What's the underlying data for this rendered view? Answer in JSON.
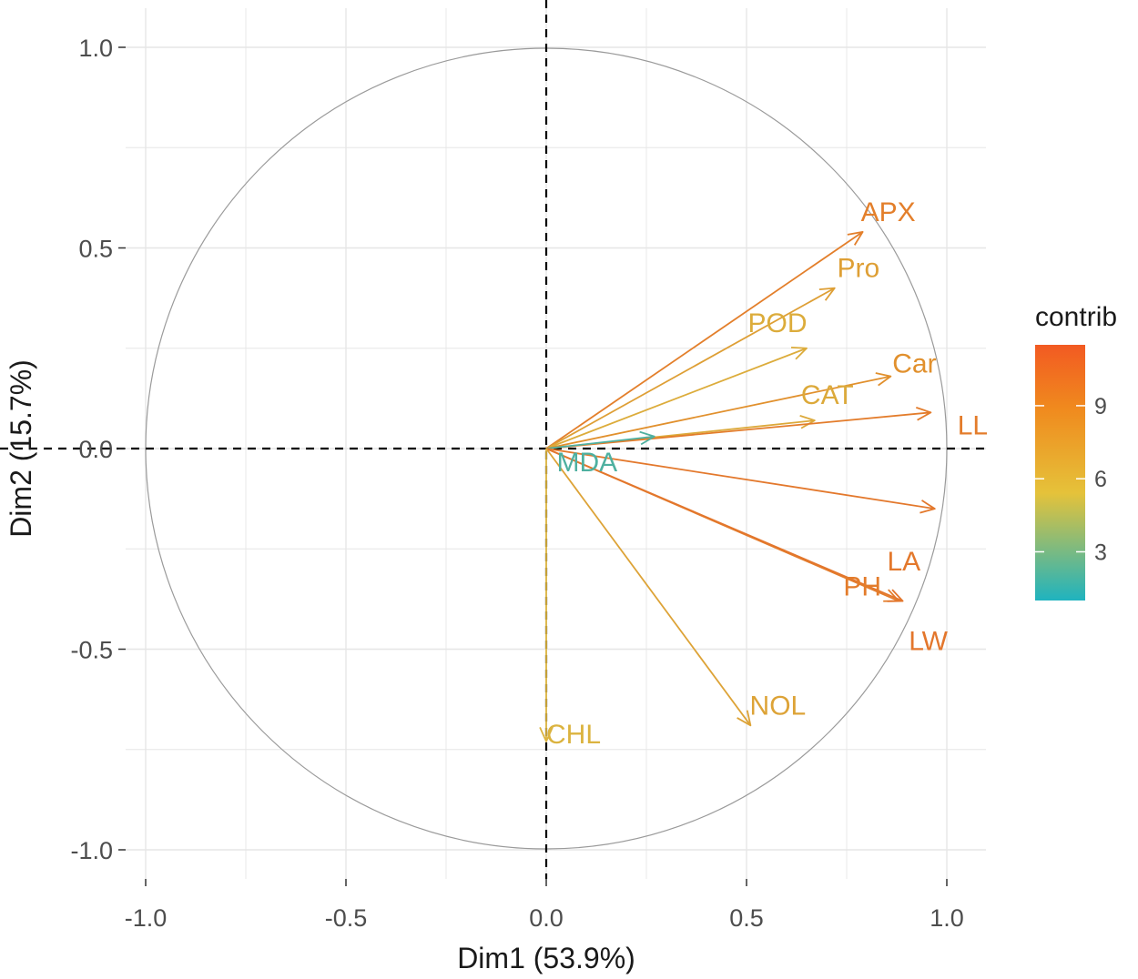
{
  "chart_data": {
    "type": "pca-variable-correlation-circle",
    "xlabel": "Dim1 (53.9%)",
    "ylabel": "Dim2 (15.7%)",
    "xlim": [
      -1.0,
      1.0
    ],
    "ylim": [
      -1.0,
      1.0
    ],
    "x_ticks": [
      -1.0,
      -0.5,
      0.0,
      0.5,
      1.0
    ],
    "y_ticks": [
      -1.0,
      -0.5,
      0.0,
      0.5,
      1.0
    ],
    "x_tick_labels": [
      "-1.0",
      "-0.5",
      "0.0",
      "0.5",
      "1.0"
    ],
    "y_tick_labels": [
      "-1.0",
      "-0.5",
      "0.0",
      "0.5",
      "1.0"
    ],
    "grid": true,
    "unit_circle": true,
    "legend": {
      "title": "contrib",
      "placement": "right",
      "range": [
        1,
        11.5
      ],
      "ticks": [
        3,
        6,
        9
      ],
      "tick_labels": [
        "3",
        "6",
        "9"
      ],
      "colors": [
        "#1fb3bf",
        "#e5c23a",
        "#f08a1e",
        "#f25a22"
      ]
    },
    "variables": [
      {
        "name": "APX",
        "label": "APX",
        "x": 0.79,
        "y": 0.54,
        "contrib": 9.5
      },
      {
        "name": "Pro",
        "label": "Pro",
        "x": 0.72,
        "y": 0.4,
        "contrib": 7.3
      },
      {
        "name": "POD",
        "label": "POD",
        "x": 0.65,
        "y": 0.25,
        "contrib": 6.4
      },
      {
        "name": "Car",
        "label": "Car",
        "x": 0.86,
        "y": 0.18,
        "contrib": 8.4
      },
      {
        "name": "CAT",
        "label": "CAT",
        "x": 0.67,
        "y": 0.07,
        "contrib": 6.6
      },
      {
        "name": "LL",
        "label": "LL",
        "x": 0.96,
        "y": 0.09,
        "contrib": 9.7
      },
      {
        "name": "MDA",
        "label": "MDA",
        "x": 0.27,
        "y": 0.03,
        "contrib": 1.9
      },
      {
        "name": "LA",
        "label": "LA",
        "x": 0.97,
        "y": -0.15,
        "contrib": 9.9
      },
      {
        "name": "PH",
        "label": "PH",
        "x": 0.88,
        "y": -0.38,
        "contrib": 9.7
      },
      {
        "name": "LW",
        "label": "LW",
        "x": 0.89,
        "y": -0.38,
        "contrib": 10.0
      },
      {
        "name": "NOL",
        "label": "NOL",
        "x": 0.51,
        "y": -0.69,
        "contrib": 7.0
      },
      {
        "name": "CHL",
        "label": "CHL",
        "x": 0.0,
        "y": -0.73,
        "contrib": 5.9
      }
    ]
  }
}
